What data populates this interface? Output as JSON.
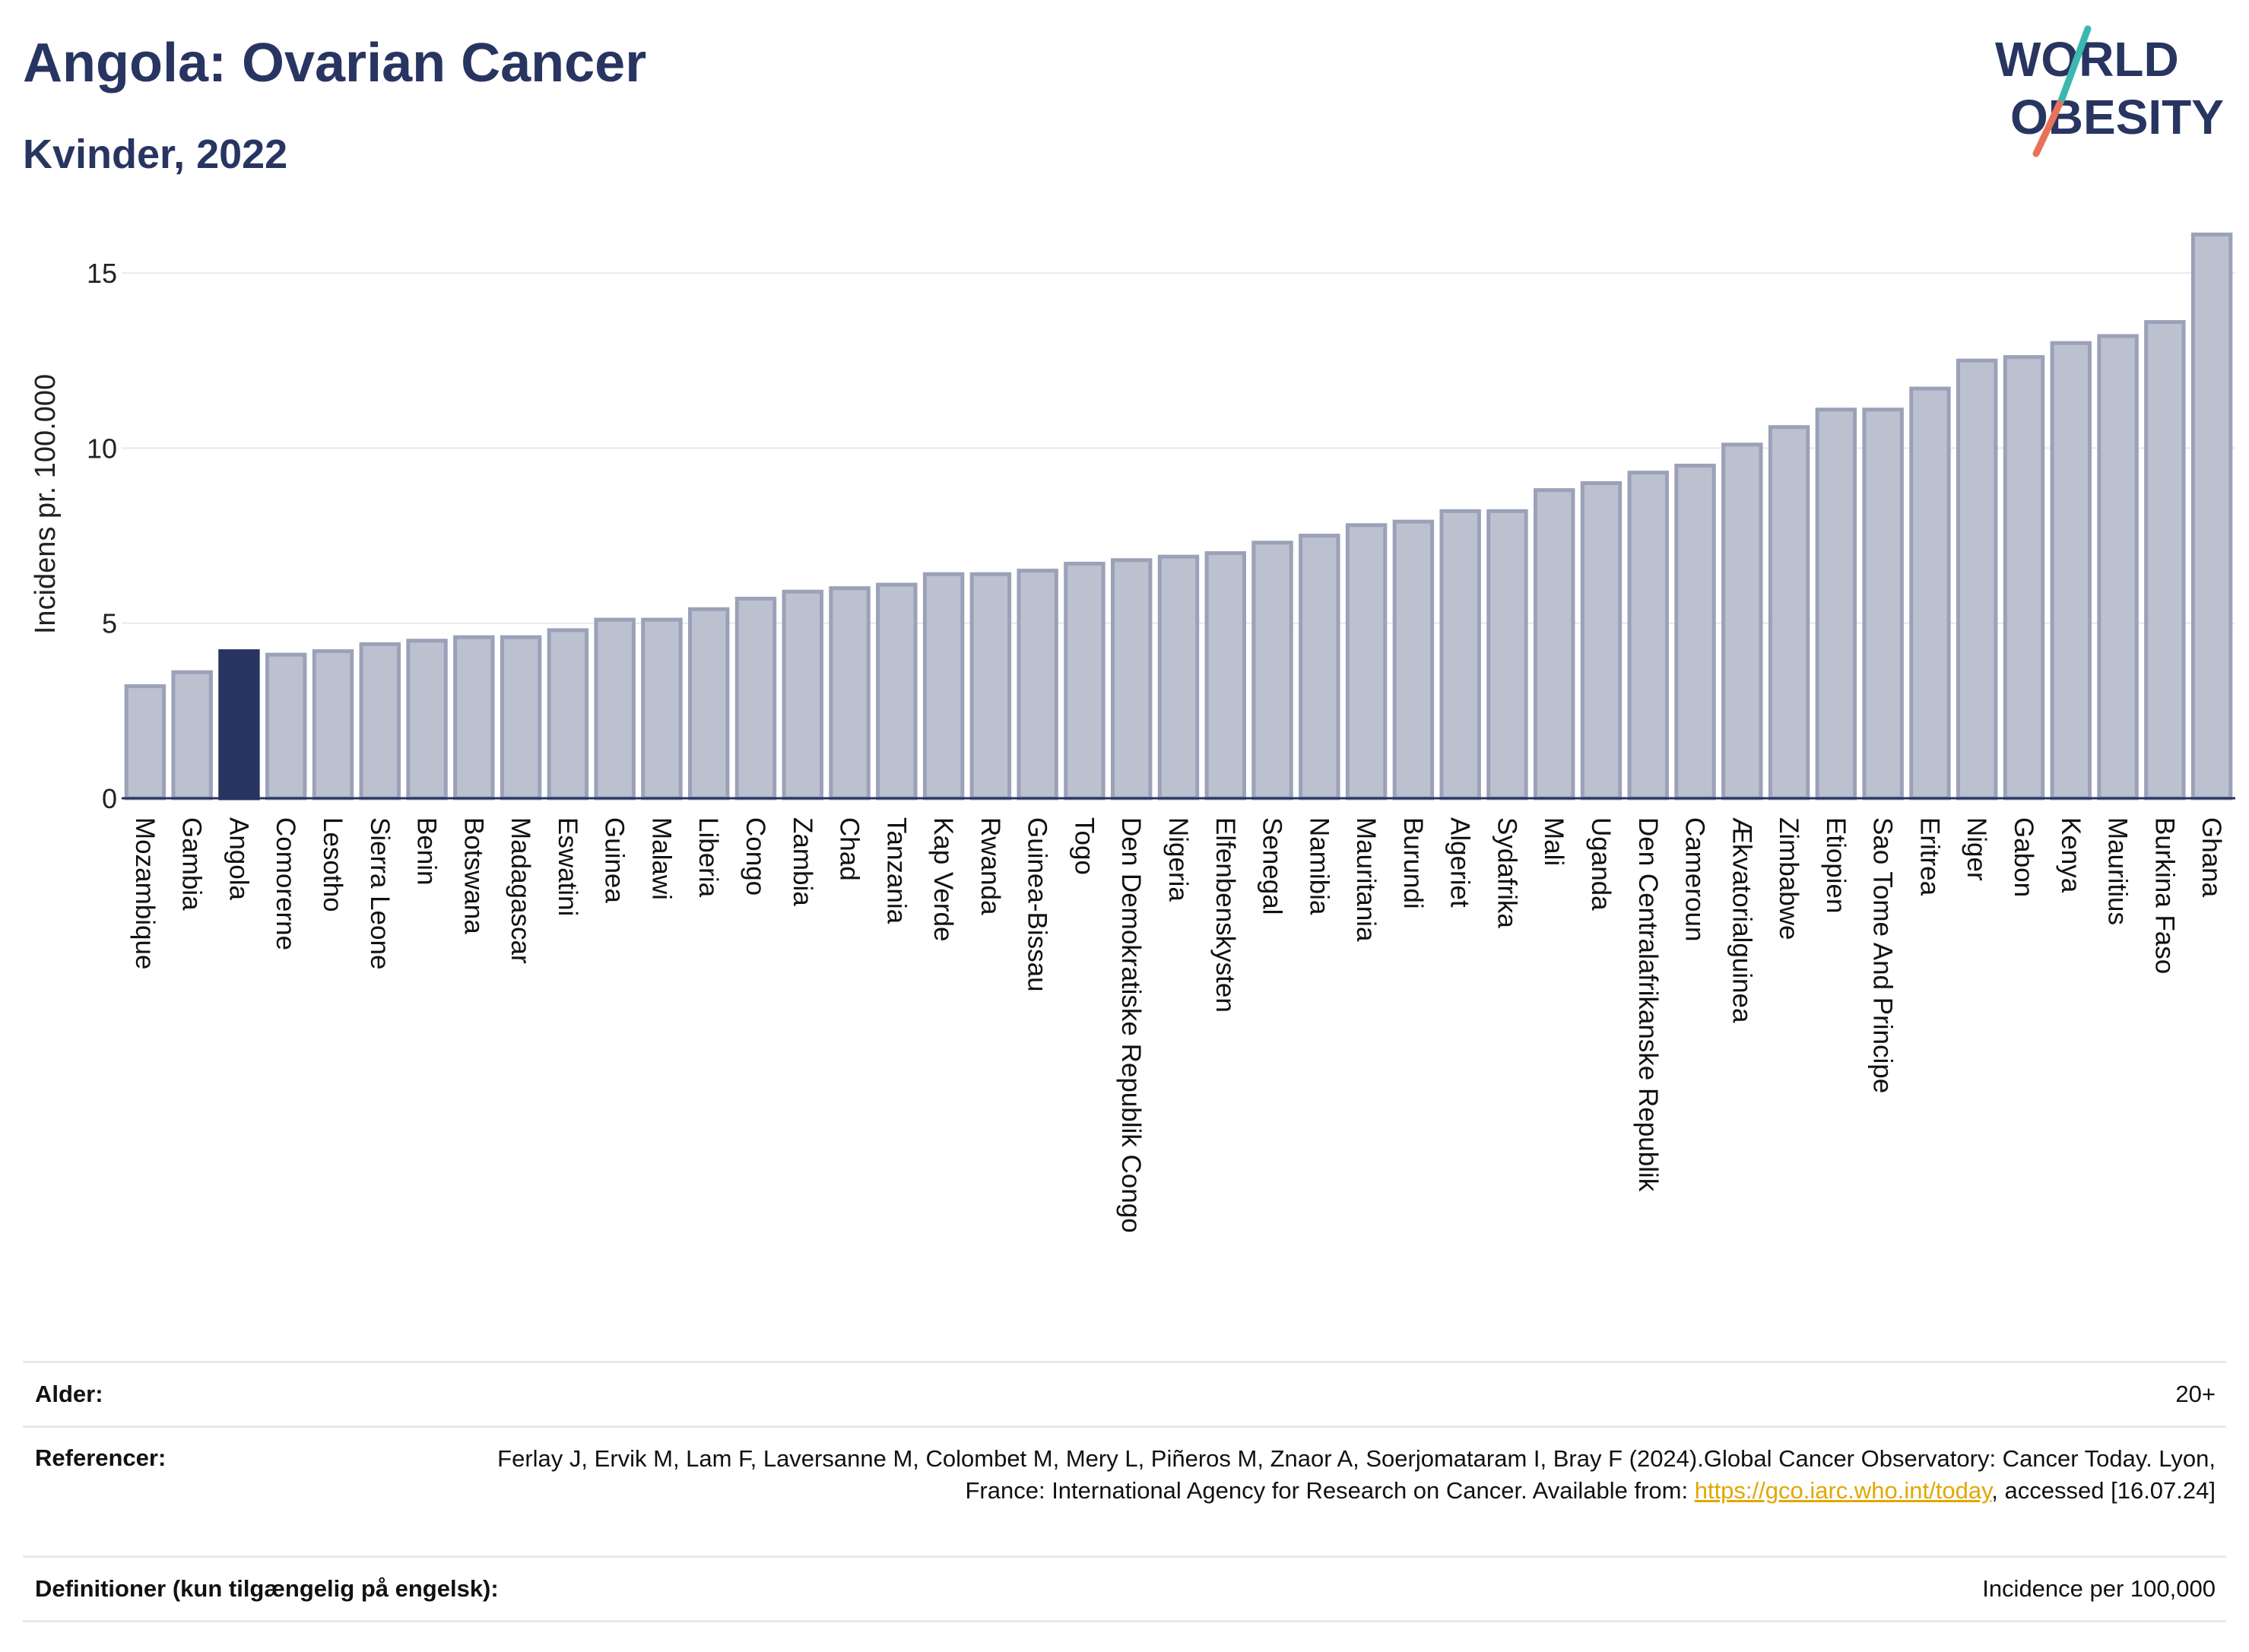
{
  "header": {
    "title": "Angola: Ovarian Cancer",
    "subtitle": "Kvinder, 2022",
    "logo_line1": "WORLD",
    "logo_line2": "OBESITY"
  },
  "colors": {
    "bar": "#bcc1d0",
    "bar_edge": "#9aa1b8",
    "highlight": "#283561",
    "title": "#283561",
    "grid": "#e6e9ee",
    "link": "#e0a800"
  },
  "chart_data": {
    "type": "bar",
    "ylabel": "Incidens pr. 100.000",
    "ylim": [
      0,
      16.5
    ],
    "yticks": [
      0,
      5,
      10,
      15
    ],
    "grid": true,
    "highlight": "Angola",
    "categories": [
      "Mozambique",
      "Gambia",
      "Angola",
      "Comorerne",
      "Lesotho",
      "Sierra Leone",
      "Benin",
      "Botswana",
      "Madagascar",
      "Eswatini",
      "Guinea",
      "Malawi",
      "Liberia",
      "Congo",
      "Zambia",
      "Chad",
      "Tanzania",
      "Kap Verde",
      "Rwanda",
      "Guinea-Bissau",
      "Togo",
      "Den Demokratiske Republik Congo",
      "Nigeria",
      "Elfenbenskysten",
      "Senegal",
      "Namibia",
      "Mauritania",
      "Burundi",
      "Algeriet",
      "Sydafrika",
      "Mali",
      "Uganda",
      "Den Centralafrikanske Republik",
      "Cameroun",
      "Ækvatorialguinea",
      "Zimbabwe",
      "Etiopien",
      "Sao Tome And Principe",
      "Eritrea",
      "Niger",
      "Gabon",
      "Kenya",
      "Mauritius",
      "Burkina Faso",
      "Ghana"
    ],
    "values": [
      3.2,
      3.6,
      4.2,
      4.1,
      4.2,
      4.4,
      4.5,
      4.6,
      4.6,
      4.8,
      5.1,
      5.1,
      5.4,
      5.7,
      5.9,
      6.0,
      6.1,
      6.4,
      6.4,
      6.5,
      6.7,
      6.8,
      6.9,
      7.0,
      7.3,
      7.5,
      7.8,
      7.9,
      8.2,
      8.2,
      8.8,
      9.0,
      9.3,
      9.5,
      10.1,
      10.6,
      11.1,
      11.1,
      11.7,
      12.5,
      12.6,
      13.0,
      13.2,
      13.6,
      16.1
    ]
  },
  "footer": {
    "age_label": "Alder:",
    "age_value": "20+",
    "ref_label": "Referencer:",
    "ref_text_1": "Ferlay J, Ervik M, Lam F, Laversanne M, Colombet M, Mery L, Piñeros M, Znaor A, Soerjomataram I, Bray F (2024).Global Cancer Observatory: Cancer Today. Lyon, France: International Agency for Research on Cancer. Available from: ",
    "ref_link": "https://gco.iarc.who.int/today",
    "ref_text_2": ", accessed [16.07.24]",
    "def_label": "Definitioner (kun tilgængelig på engelsk):",
    "def_value": "Incidence per 100,000"
  }
}
